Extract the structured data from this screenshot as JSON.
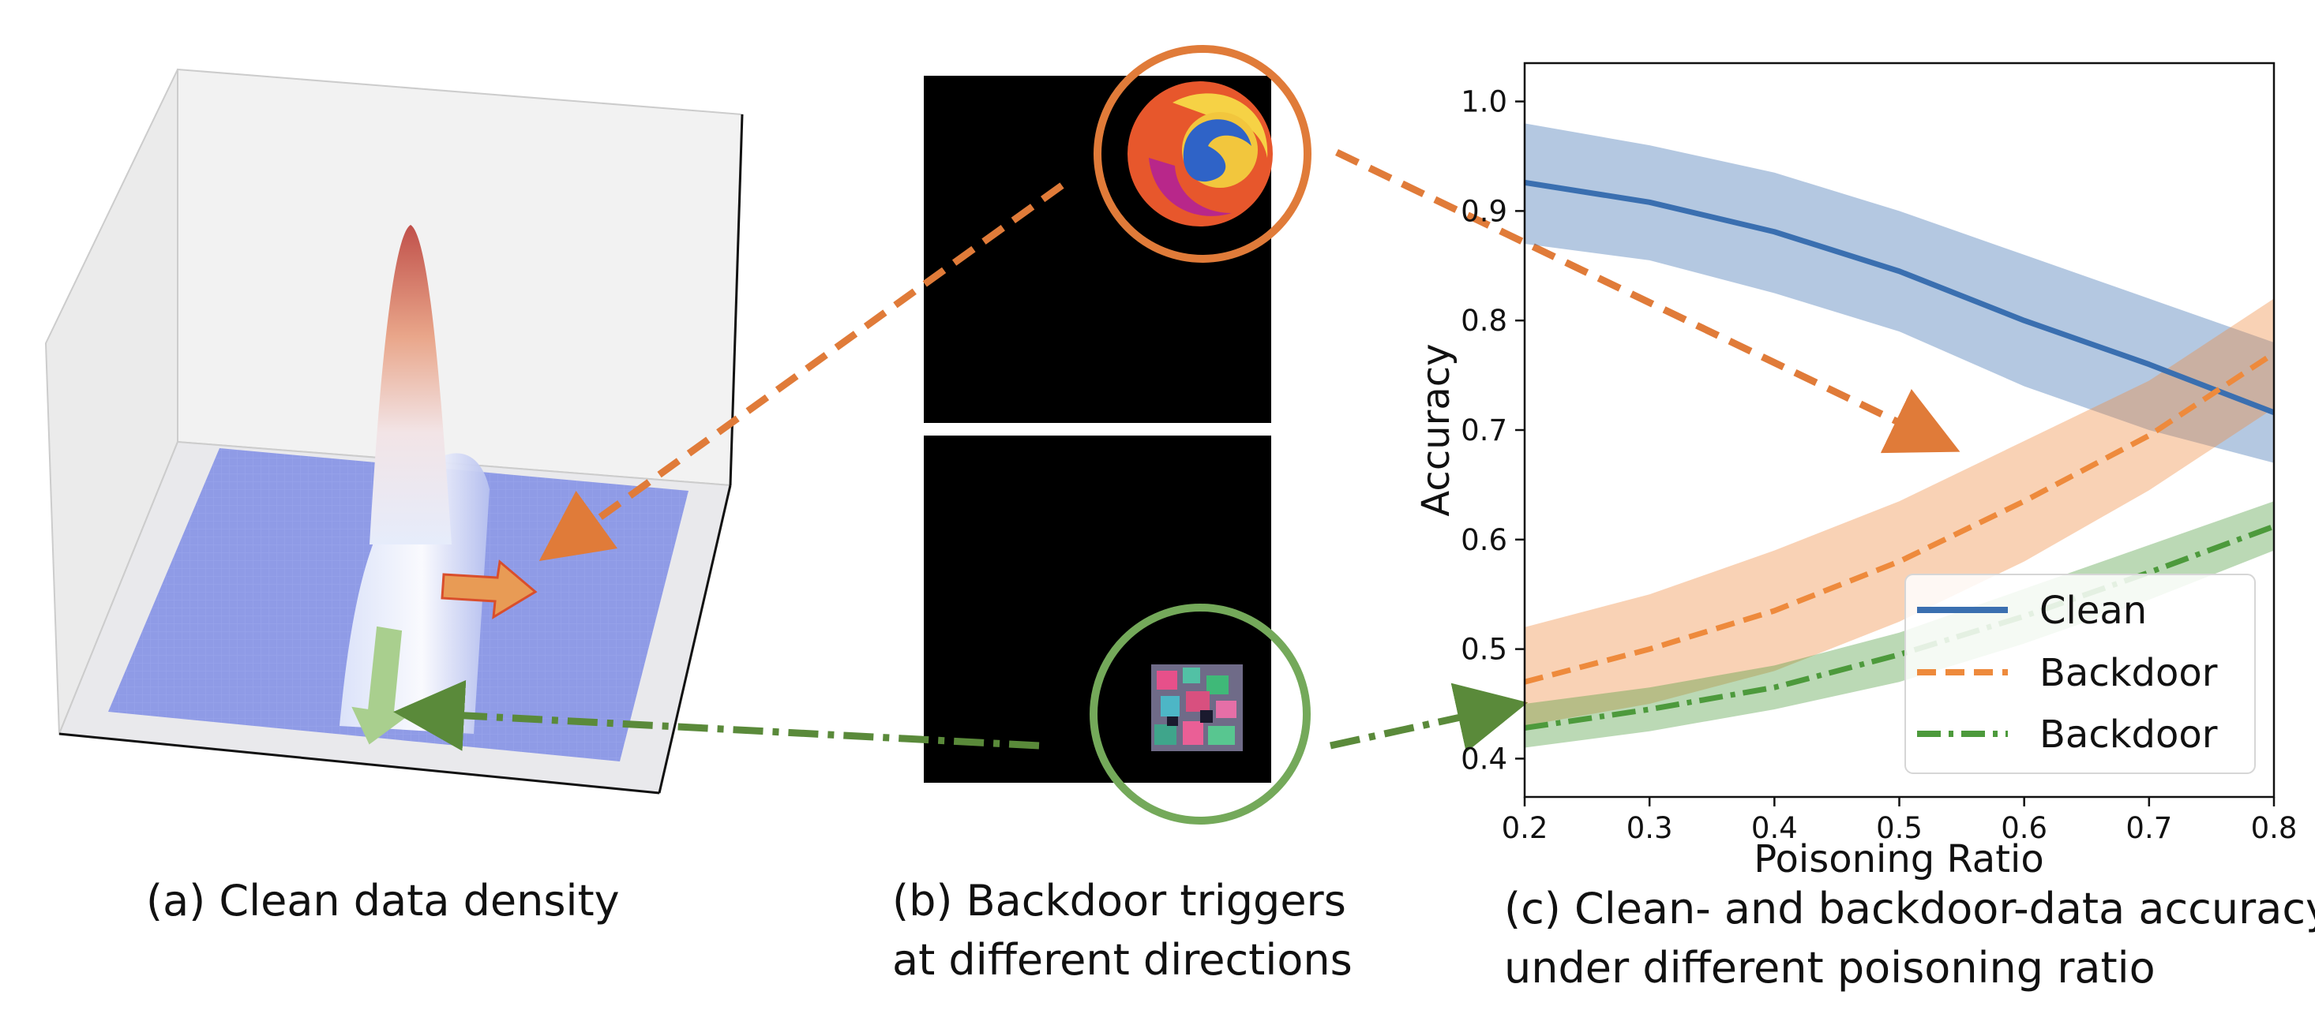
{
  "captions": {
    "a": "(a) Clean data density",
    "b_line1": "(b) Backdoor triggers",
    "b_line2": "at different directions",
    "c_line1": "(c) Clean- and backdoor-data accuracy",
    "c_line2": "under different poisoning ratio"
  },
  "colors": {
    "orange": "#e07b39",
    "green": "#5a8a3a",
    "clean": "#3a6fb0",
    "backdoor_orange": "#ee8a3c",
    "backdoor_green": "#4d9a3c",
    "plane": "#8f9be6"
  },
  "chart_data": {
    "type": "line",
    "xlabel": "Poisoning Ratio",
    "ylabel": "Accuracy",
    "xlim": [
      0.2,
      0.8
    ],
    "ylim": [
      0.365,
      1.035
    ],
    "xticks": [
      "0.2",
      "0.3",
      "0.4",
      "0.5",
      "0.6",
      "0.7",
      "0.8"
    ],
    "yticks": [
      "0.4",
      "0.5",
      "0.6",
      "0.7",
      "0.8",
      "0.9",
      "1.0"
    ],
    "grid": false,
    "legend_position": "lower-right",
    "x": [
      0.2,
      0.3,
      0.4,
      0.5,
      0.6,
      0.7,
      0.8
    ],
    "series": [
      {
        "name": "Clean",
        "style": "solid",
        "color": "#3a6fb0",
        "values": [
          0.926,
          0.908,
          0.881,
          0.845,
          0.8,
          0.76,
          0.716
        ],
        "lower": [
          0.87,
          0.855,
          0.825,
          0.79,
          0.74,
          0.7,
          0.67
        ],
        "upper": [
          0.98,
          0.96,
          0.935,
          0.9,
          0.86,
          0.82,
          0.78
        ]
      },
      {
        "name": "Backdoor",
        "style": "dashed",
        "color": "#ee8a3c",
        "values": [
          0.47,
          0.5,
          0.535,
          0.58,
          0.635,
          0.695,
          0.77
        ],
        "lower": [
          0.43,
          0.45,
          0.48,
          0.525,
          0.58,
          0.645,
          0.72
        ],
        "upper": [
          0.52,
          0.55,
          0.59,
          0.635,
          0.69,
          0.745,
          0.82
        ]
      },
      {
        "name": "Backdoor",
        "style": "dashdot",
        "color": "#4d9a3c",
        "values": [
          0.428,
          0.445,
          0.465,
          0.495,
          0.53,
          0.57,
          0.612
        ],
        "lower": [
          0.41,
          0.425,
          0.445,
          0.47,
          0.505,
          0.545,
          0.59
        ],
        "upper": [
          0.45,
          0.465,
          0.485,
          0.515,
          0.555,
          0.595,
          0.635
        ]
      }
    ]
  }
}
